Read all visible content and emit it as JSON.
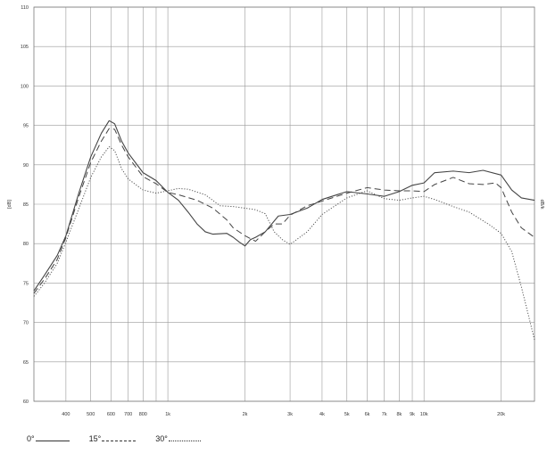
{
  "chart_data": {
    "type": "line",
    "title": "",
    "xlabel": "",
    "ylabel": "[dB]",
    "right_label": "dB/k",
    "xscale": "log",
    "xlim": [
      300,
      27000
    ],
    "ylim": [
      60,
      110
    ],
    "grid": true,
    "yticks": [
      60,
      65,
      70,
      75,
      80,
      85,
      90,
      95,
      100,
      105,
      110
    ],
    "xticks": [
      {
        "value": 400,
        "label": "400"
      },
      {
        "value": 500,
        "label": "500"
      },
      {
        "value": 600,
        "label": "600"
      },
      {
        "value": 700,
        "label": "700"
      },
      {
        "value": 800,
        "label": "800"
      },
      {
        "value": 1000,
        "label": "1k"
      },
      {
        "value": 2000,
        "label": "2k"
      },
      {
        "value": 3000,
        "label": "3k"
      },
      {
        "value": 4000,
        "label": "4k"
      },
      {
        "value": 5000,
        "label": "5k"
      },
      {
        "value": 6000,
        "label": "6k"
      },
      {
        "value": 7000,
        "label": "7k"
      },
      {
        "value": 8000,
        "label": "8k"
      },
      {
        "value": 9000,
        "label": "9k"
      },
      {
        "value": 10000,
        "label": "10k"
      },
      {
        "value": 20000,
        "label": "20k"
      }
    ],
    "minor_gridlines": [
      900
    ],
    "series": [
      {
        "name": "0°",
        "style": "solid",
        "points": [
          [
            300,
            74
          ],
          [
            330,
            76
          ],
          [
            370,
            78.5
          ],
          [
            400,
            81
          ],
          [
            450,
            86.5
          ],
          [
            500,
            91
          ],
          [
            550,
            94
          ],
          [
            590,
            95.6
          ],
          [
            620,
            95.2
          ],
          [
            660,
            93
          ],
          [
            700,
            91.5
          ],
          [
            800,
            89
          ],
          [
            900,
            88
          ],
          [
            1000,
            86.5
          ],
          [
            1100,
            85.5
          ],
          [
            1200,
            84
          ],
          [
            1300,
            82.5
          ],
          [
            1400,
            81.5
          ],
          [
            1500,
            81.2
          ],
          [
            1700,
            81.3
          ],
          [
            1800,
            80.8
          ],
          [
            1900,
            80.2
          ],
          [
            2000,
            79.7
          ],
          [
            2100,
            80.5
          ],
          [
            2200,
            80.8
          ],
          [
            2400,
            81.5
          ],
          [
            2700,
            83.5
          ],
          [
            3000,
            83.7
          ],
          [
            3500,
            84.5
          ],
          [
            4000,
            85.6
          ],
          [
            5000,
            86.6
          ],
          [
            6000,
            86.3
          ],
          [
            7000,
            86
          ],
          [
            8000,
            86.6
          ],
          [
            9000,
            87.4
          ],
          [
            10000,
            87.7
          ],
          [
            11000,
            89
          ],
          [
            13000,
            89.2
          ],
          [
            15000,
            89
          ],
          [
            17000,
            89.3
          ],
          [
            20000,
            88.7
          ],
          [
            22000,
            86.8
          ],
          [
            24000,
            85.8
          ],
          [
            27000,
            85.5
          ]
        ]
      },
      {
        "name": "15°",
        "style": "dashed",
        "points": [
          [
            300,
            73.7
          ],
          [
            330,
            75.5
          ],
          [
            370,
            78
          ],
          [
            400,
            80.8
          ],
          [
            450,
            86
          ],
          [
            500,
            90.3
          ],
          [
            550,
            93
          ],
          [
            590,
            94.6
          ],
          [
            620,
            94.5
          ],
          [
            660,
            92.5
          ],
          [
            700,
            91
          ],
          [
            800,
            88.5
          ],
          [
            900,
            87.6
          ],
          [
            1000,
            86.5
          ],
          [
            1100,
            86.2
          ],
          [
            1300,
            85.5
          ],
          [
            1500,
            84.5
          ],
          [
            1700,
            83
          ],
          [
            1800,
            82
          ],
          [
            2000,
            81
          ],
          [
            2200,
            80.3
          ],
          [
            2400,
            81.5
          ],
          [
            2600,
            82.5
          ],
          [
            2800,
            82.5
          ],
          [
            3000,
            83.6
          ],
          [
            3500,
            84.8
          ],
          [
            4000,
            85.4
          ],
          [
            5000,
            86.4
          ],
          [
            6000,
            87.1
          ],
          [
            7000,
            86.8
          ],
          [
            8000,
            86.7
          ],
          [
            9000,
            86.7
          ],
          [
            10000,
            86.6
          ],
          [
            11000,
            87.5
          ],
          [
            13000,
            88.4
          ],
          [
            15000,
            87.6
          ],
          [
            17000,
            87.5
          ],
          [
            19000,
            87.7
          ],
          [
            20000,
            87.1
          ],
          [
            22000,
            84
          ],
          [
            24000,
            82
          ],
          [
            27000,
            80.8
          ]
        ]
      },
      {
        "name": "30°",
        "style": "dotted",
        "points": [
          [
            300,
            73.3
          ],
          [
            330,
            75
          ],
          [
            370,
            77.5
          ],
          [
            400,
            80.2
          ],
          [
            450,
            84.5
          ],
          [
            500,
            88.4
          ],
          [
            550,
            91
          ],
          [
            590,
            92.3
          ],
          [
            620,
            91.8
          ],
          [
            660,
            89.5
          ],
          [
            700,
            88.2
          ],
          [
            800,
            86.8
          ],
          [
            900,
            86.4
          ],
          [
            1000,
            86.7
          ],
          [
            1100,
            87
          ],
          [
            1200,
            86.9
          ],
          [
            1400,
            86.2
          ],
          [
            1600,
            84.8
          ],
          [
            1800,
            84.7
          ],
          [
            2000,
            84.5
          ],
          [
            2200,
            84.3
          ],
          [
            2400,
            83.8
          ],
          [
            2600,
            81.5
          ],
          [
            2800,
            80.5
          ],
          [
            3000,
            79.9
          ],
          [
            3500,
            81.5
          ],
          [
            4000,
            83.7
          ],
          [
            5000,
            85.8
          ],
          [
            6000,
            86.7
          ],
          [
            7000,
            85.7
          ],
          [
            8000,
            85.5
          ],
          [
            9000,
            85.8
          ],
          [
            10000,
            86
          ],
          [
            11000,
            85.6
          ],
          [
            13000,
            84.7
          ],
          [
            15000,
            84
          ],
          [
            18000,
            82.4
          ],
          [
            20000,
            81.3
          ],
          [
            22000,
            79
          ],
          [
            24000,
            74.5
          ],
          [
            27000,
            67.8
          ]
        ]
      }
    ],
    "legend": {
      "placement": "bottom-left",
      "entries": [
        {
          "label": "0°",
          "style": "solid"
        },
        {
          "label": "15°",
          "style": "dashed"
        },
        {
          "label": "30°",
          "style": "dotted"
        }
      ]
    }
  }
}
